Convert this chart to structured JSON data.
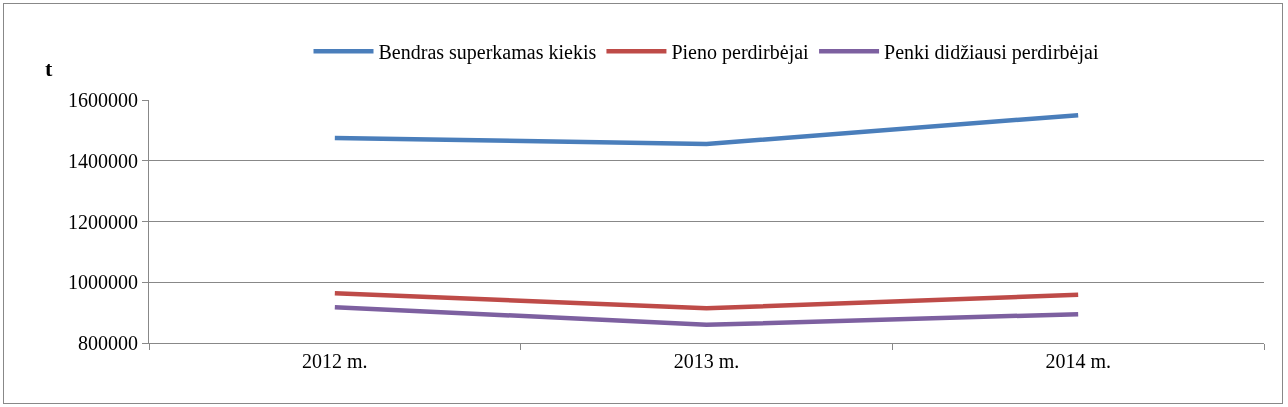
{
  "chart_data": {
    "type": "line",
    "ylabel": "t",
    "categories": [
      "2012 m.",
      "2013 m.",
      "2014 m."
    ],
    "series": [
      {
        "name": "Bendras superkamas kiekis",
        "color": "#4a7ebb",
        "values": [
          1475000,
          1455000,
          1550000
        ]
      },
      {
        "name": "Pieno perdirbėjai",
        "color": "#be4b48",
        "values": [
          964000,
          914000,
          959000
        ]
      },
      {
        "name": "Penki didžiausi perdirbėjai",
        "color": "#7d60a0",
        "values": [
          918000,
          860000,
          895000
        ]
      }
    ],
    "ylim": [
      800000,
      1600000
    ],
    "yticks": [
      800000,
      1000000,
      1200000,
      1400000,
      1600000
    ],
    "grid": "y",
    "legend": "top",
    "marker": "none",
    "line_style": "solid"
  }
}
